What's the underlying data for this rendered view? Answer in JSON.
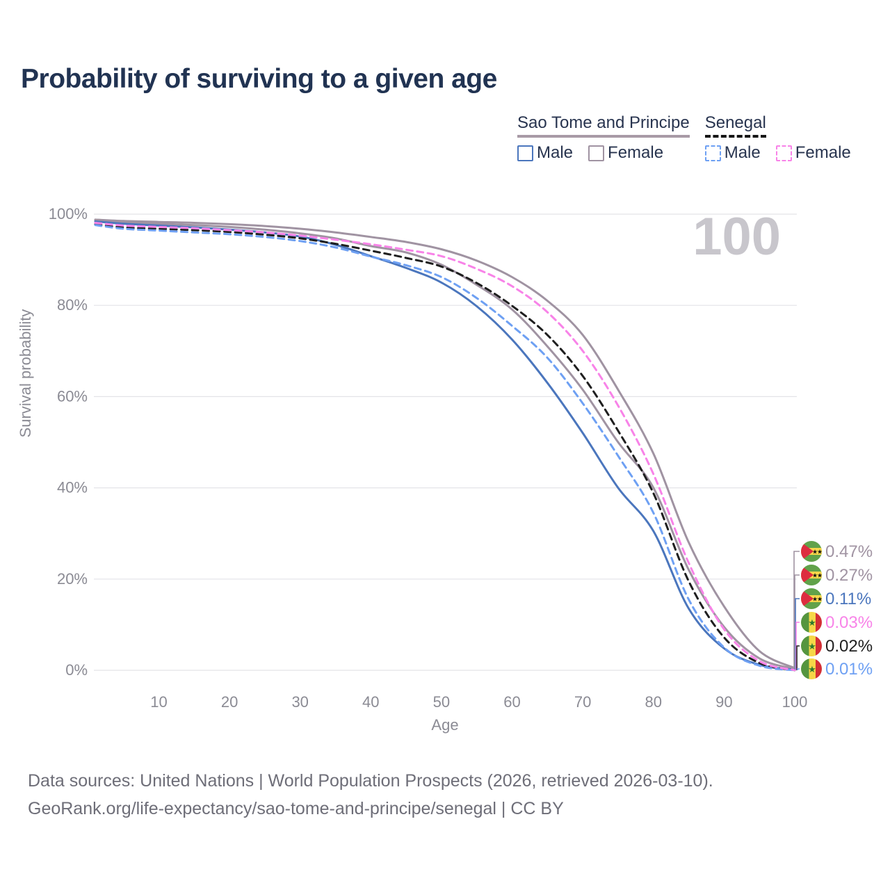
{
  "title": "Probability of surviving to a given age",
  "watermark": "100",
  "colors": {
    "title": "#213352",
    "axis_text": "#8b8b94",
    "gridline": "#e3e3e8",
    "watermark": "#c8c6cc",
    "footer_text": "#6e6e78",
    "stp_male": "#4b76bd",
    "stp_female": "#a093a2",
    "stp_both": "#a093a2",
    "sen_male": "#6ea0f3",
    "sen_female": "#f883e8",
    "sen_both": "#1f1f1f"
  },
  "legend": {
    "groups": [
      {
        "label": "Sao Tome and Principe",
        "line_style": "solid",
        "line_color": "#a89aa6",
        "items": [
          {
            "label": "Male",
            "color": "#4b76bd",
            "dashed": false
          },
          {
            "label": "Female",
            "color": "#a093a2",
            "dashed": false
          }
        ]
      },
      {
        "label": "Senegal",
        "line_style": "dashed",
        "line_color": "#151515",
        "items": [
          {
            "label": "Male",
            "color": "#6ea0f3",
            "dashed": true
          },
          {
            "label": "Female",
            "color": "#f883e8",
            "dashed": true
          }
        ]
      }
    ]
  },
  "chart_data": {
    "type": "line",
    "title": "Probability of surviving to a given age",
    "xlabel": "Age",
    "ylabel": "Survival probability",
    "xlim": [
      1,
      100
    ],
    "ylim": [
      0,
      100
    ],
    "grid": "horizontal",
    "legend_position": "top-right",
    "x_ticks": [
      10,
      20,
      30,
      40,
      50,
      60,
      70,
      80,
      90,
      100
    ],
    "y_ticks": [
      {
        "value": 0,
        "label": "0%"
      },
      {
        "value": 20,
        "label": "20%"
      },
      {
        "value": 40,
        "label": "40%"
      },
      {
        "value": 60,
        "label": "60%"
      },
      {
        "value": 80,
        "label": "80%"
      },
      {
        "value": 100,
        "label": "100%"
      }
    ],
    "x": [
      1,
      5,
      10,
      15,
      20,
      25,
      30,
      35,
      40,
      45,
      50,
      55,
      60,
      65,
      70,
      75,
      80,
      85,
      90,
      95,
      100
    ],
    "series": [
      {
        "name": "Sao Tome and Principe - Both sexes",
        "country": "Sao Tome and Principe",
        "sex": "Both sexes",
        "color": "#a093a2",
        "dashed": false,
        "flag": "stp",
        "end_label": "0.27%",
        "values": [
          98.6,
          98.2,
          97.9,
          97.6,
          97.2,
          96.6,
          95.8,
          94.7,
          93.0,
          91.6,
          88.9,
          84.5,
          79.1,
          71.0,
          61.5,
          50.0,
          40.0,
          22.0,
          9.5,
          2.6,
          0.27
        ]
      },
      {
        "name": "Sao Tome and Principe - Female",
        "country": "Sao Tome and Principe",
        "sex": "Female",
        "color": "#a093a2",
        "dashed": false,
        "flag": "stp",
        "end_label": "0.47%",
        "values": [
          98.8,
          98.5,
          98.3,
          98.1,
          97.8,
          97.4,
          96.8,
          96.0,
          95.0,
          93.9,
          92.3,
          89.8,
          86.2,
          81.0,
          73.5,
          61.5,
          47.5,
          28.0,
          14.0,
          4.2,
          0.47
        ]
      },
      {
        "name": "Sao Tome and Principe - Male",
        "country": "Sao Tome and Principe",
        "sex": "Male",
        "color": "#4b76bd",
        "dashed": false,
        "flag": "stp",
        "end_label": "0.11%",
        "values": [
          98.4,
          97.9,
          97.5,
          97.1,
          96.6,
          96.0,
          95.1,
          93.3,
          90.8,
          88.2,
          85.0,
          79.8,
          72.5,
          63.0,
          52.0,
          40.0,
          30.5,
          13.5,
          4.8,
          1.2,
          0.11
        ]
      },
      {
        "name": "Senegal - Both sexes",
        "country": "Senegal",
        "sex": "Both sexes",
        "color": "#1f1f1f",
        "dashed": true,
        "flag": "sen",
        "end_label": "0.02%",
        "values": [
          97.8,
          97.1,
          96.8,
          96.5,
          96.1,
          95.5,
          94.7,
          93.5,
          92.0,
          90.4,
          88.5,
          84.9,
          79.9,
          73.5,
          64.5,
          52.5,
          38.8,
          19.5,
          7.2,
          1.6,
          0.02
        ]
      },
      {
        "name": "Senegal - Male",
        "country": "Senegal",
        "sex": "Male",
        "color": "#6ea0f3",
        "dashed": true,
        "flag": "sen",
        "end_label": "0.01%",
        "values": [
          97.6,
          96.8,
          96.4,
          96.0,
          95.6,
          95.0,
          94.1,
          92.7,
          90.7,
          88.8,
          86.2,
          81.6,
          75.5,
          68.5,
          58.5,
          47.0,
          34.5,
          15.5,
          5.0,
          1.0,
          0.01
        ]
      },
      {
        "name": "Senegal - Female",
        "country": "Senegal",
        "sex": "Female",
        "color": "#f883e8",
        "dashed": true,
        "flag": "sen",
        "end_label": "0.03%",
        "values": [
          98.1,
          97.5,
          97.2,
          96.9,
          96.5,
          96.0,
          95.3,
          94.4,
          93.4,
          92.2,
          90.8,
          88.0,
          84.2,
          78.5,
          70.0,
          58.0,
          43.0,
          23.5,
          9.0,
          2.0,
          0.03
        ]
      }
    ]
  },
  "footer": {
    "line1": "Data sources: United Nations | World Population Prospects (2026, retrieved 2026-03-10).",
    "line2": "GeoRank.org/life-expectancy/sao-tome-and-principe/senegal | CC BY"
  }
}
